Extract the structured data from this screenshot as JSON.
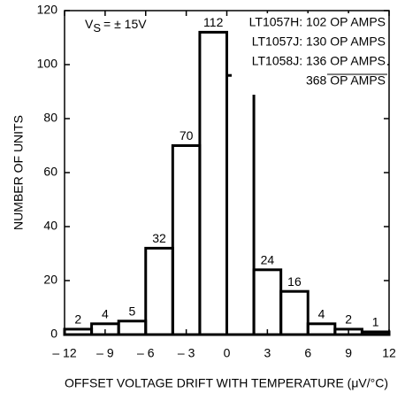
{
  "chart_data": {
    "type": "histogram",
    "xlabel": "OFFSET VOLTAGE DRIFT WITH TEMPERATURE (μV/°C)",
    "ylabel": "NUMBER OF UNITS",
    "annotation": {
      "symbol": "V",
      "subscript": "S",
      "text": "= ± 15V"
    },
    "legend_lines": [
      "LT1057H: 102 OP AMPS",
      "LT1057J: 130 OP AMPS",
      "LT1058J: 136 OP AMPS",
      "368 OP AMPS"
    ],
    "bins": [
      -12,
      -10,
      -8,
      -6,
      -4,
      -2,
      0,
      2,
      4,
      6,
      8,
      10,
      12
    ],
    "values": [
      2,
      4,
      5,
      32,
      70,
      112,
      96,
      24,
      16,
      4,
      2,
      1
    ],
    "color": "#000000",
    "xlim": [
      -12,
      12
    ],
    "xticks": [
      {
        "value": -12,
        "label": "– 12"
      },
      {
        "value": -9,
        "label": "– 9"
      },
      {
        "value": -6,
        "label": "– 6"
      },
      {
        "value": -3,
        "label": "– 3"
      },
      0,
      3,
      6,
      9,
      12
    ],
    "ylim": [
      0,
      120
    ],
    "yticks": [
      0,
      20,
      40,
      60,
      80,
      100,
      120
    ],
    "grid": false
  }
}
